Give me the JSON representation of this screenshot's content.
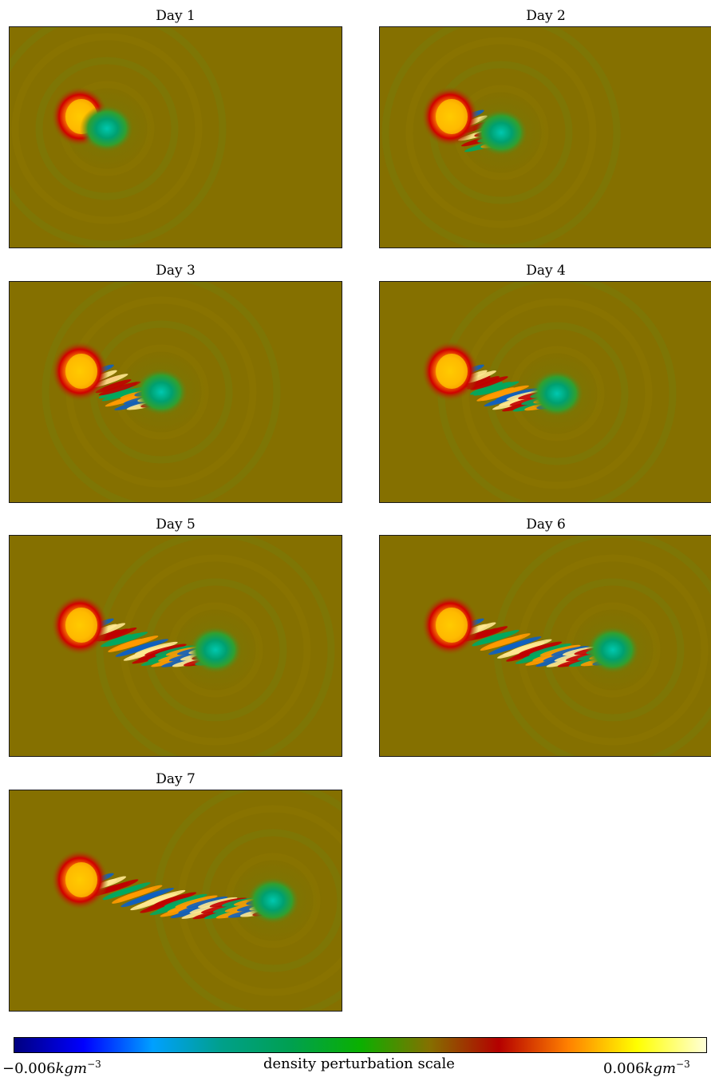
{
  "panels": [
    {
      "title": "Day 1",
      "day": 1
    },
    {
      "title": "Day 2",
      "day": 2
    },
    {
      "title": "Day 3",
      "day": 3
    },
    {
      "title": "Day 4",
      "day": 4
    },
    {
      "title": "Day 5",
      "day": 5
    },
    {
      "title": "Day 6",
      "day": 6
    },
    {
      "title": "Day 7",
      "day": 7
    }
  ],
  "colorbar": {
    "min_value": "−0.006",
    "max_value": "0.006",
    "unit": "kgm",
    "unit_exponent": "−3",
    "label": "density perturbation scale",
    "colors": [
      "#000080",
      "#0000ff",
      "#00a0ff",
      "#00a08a",
      "#00a050",
      "#0ab000",
      "#857000",
      "#b40000",
      "#ff8000",
      "#ffff00",
      "#ffffd8"
    ]
  },
  "colors": {
    "background_field": "#857000",
    "positive_anomaly": "#e80000",
    "negative_anomaly": "#00b060"
  }
}
